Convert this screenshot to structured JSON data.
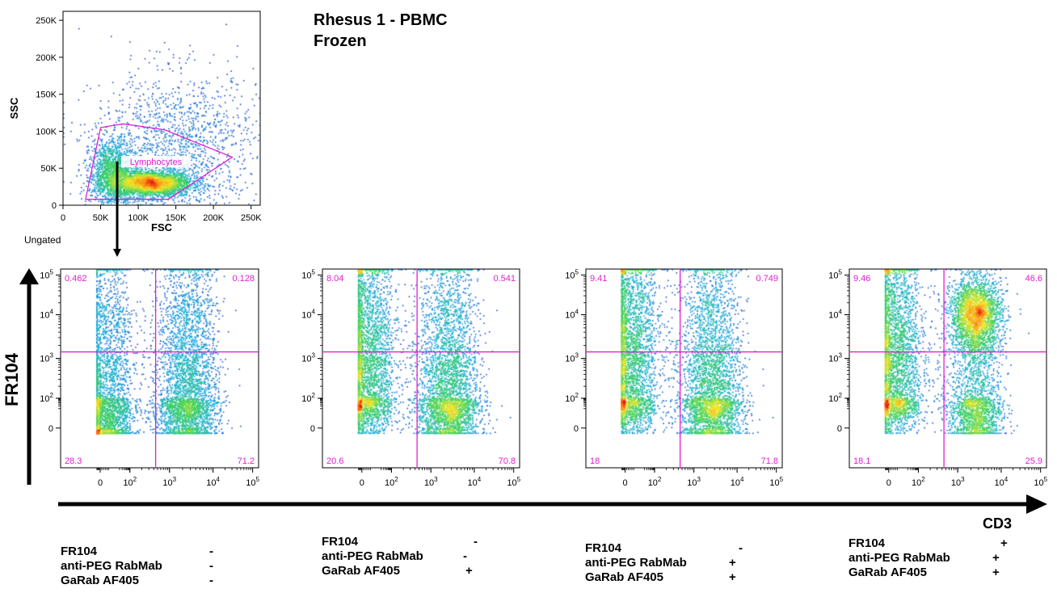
{
  "title_lines": [
    "Rhesus 1 - PBMC",
    "Frozen"
  ],
  "colors": {
    "gate": "#e020d0",
    "axis": "#000000"
  },
  "big_axes": {
    "y_label": "FR104",
    "x_label": "CD3"
  },
  "chart_data": [
    {
      "type": "scatter",
      "subtitle": "Ungated",
      "xlabel": "FSC",
      "ylabel": "SSC",
      "xlim": [
        0,
        262144
      ],
      "ylim": [
        0,
        262144
      ],
      "x_ticks": [
        "0",
        "50K",
        "100K",
        "150K",
        "200K",
        "250K"
      ],
      "y_ticks": [
        "0",
        "50K",
        "100K",
        "150K",
        "200K",
        "250K"
      ],
      "gate": {
        "name": "Lymphocytes",
        "polygon": [
          [
            30000,
            8000
          ],
          [
            50000,
            105000
          ],
          [
            80000,
            110000
          ],
          [
            135000,
            102000
          ],
          [
            225000,
            65000
          ],
          [
            140000,
            8000
          ]
        ]
      },
      "populations": [
        {
          "x": 115000,
          "y": 30000,
          "sx": 28000,
          "sy": 9000,
          "n": 3000
        },
        {
          "x": 65000,
          "y": 45000,
          "sx": 15000,
          "sy": 22000,
          "n": 1400
        },
        {
          "x": 150000,
          "y": 80000,
          "sx": 55000,
          "sy": 50000,
          "n": 1500
        }
      ]
    },
    {
      "type": "scatter",
      "xlim": [
        -6,
        5.3
      ],
      "ylim": [
        -6,
        5.3
      ],
      "x_ticks": [
        {
          "v": 0,
          "t": "0"
        },
        {
          "v": 2,
          "t": "10",
          "e": "2"
        },
        {
          "v": 3,
          "t": "10",
          "e": "3"
        },
        {
          "v": 4,
          "t": "10",
          "e": "4"
        },
        {
          "v": 5,
          "t": "10",
          "e": "5"
        }
      ],
      "y_ticks": [
        {
          "v": 0,
          "t": "0"
        },
        {
          "v": 2,
          "t": "10",
          "e": "2"
        },
        {
          "v": 3,
          "t": "10",
          "e": "3"
        },
        {
          "v": 4,
          "t": "10",
          "e": "4"
        },
        {
          "v": 5,
          "t": "10",
          "e": "5"
        }
      ],
      "quadrant": {
        "x": 2.65,
        "y": 3.15
      },
      "quadrant_values": {
        "upper_left": "0.462",
        "upper_right": "0.128",
        "lower_left": "28.3",
        "lower_right": "71.2"
      },
      "populations": [
        {
          "x": 0.4,
          "y": 1.8,
          "sx": 1.0,
          "sy": 1.8,
          "n": 2800
        },
        {
          "x": 3.4,
          "y": 2.2,
          "sx": 0.35,
          "sy": 1.6,
          "n": 3500
        },
        {
          "x": 1.5,
          "y": 3.7,
          "sx": 0.7,
          "sy": 0.5,
          "n": 120
        }
      ]
    },
    {
      "type": "scatter",
      "xlim": [
        -6,
        5.3
      ],
      "ylim": [
        -6,
        5.3
      ],
      "x_ticks": [
        {
          "v": 0,
          "t": "0"
        },
        {
          "v": 2,
          "t": "10",
          "e": "2"
        },
        {
          "v": 3,
          "t": "10",
          "e": "3"
        },
        {
          "v": 4,
          "t": "10",
          "e": "4"
        },
        {
          "v": 5,
          "t": "10",
          "e": "5"
        }
      ],
      "y_ticks": [
        {
          "v": 0,
          "t": "0"
        },
        {
          "v": 2,
          "t": "10",
          "e": "2"
        },
        {
          "v": 3,
          "t": "10",
          "e": "3"
        },
        {
          "v": 4,
          "t": "10",
          "e": "4"
        },
        {
          "v": 5,
          "t": "10",
          "e": "5"
        }
      ],
      "quadrant": {
        "x": 2.65,
        "y": 3.15
      },
      "quadrant_values": {
        "upper_left": "8.04",
        "upper_right": "0.541",
        "lower_left": "20.6",
        "lower_right": "70.8"
      },
      "populations": [
        {
          "x": 0.4,
          "y": 2.8,
          "sx": 1.0,
          "sy": 1.4,
          "n": 3300
        },
        {
          "x": 3.4,
          "y": 2.2,
          "sx": 0.35,
          "sy": 1.6,
          "n": 3500
        }
      ]
    },
    {
      "type": "scatter",
      "xlim": [
        -6,
        5.3
      ],
      "ylim": [
        -6,
        5.3
      ],
      "x_ticks": [
        {
          "v": 0,
          "t": "0"
        },
        {
          "v": 2,
          "t": "10",
          "e": "2"
        },
        {
          "v": 3,
          "t": "10",
          "e": "3"
        },
        {
          "v": 4,
          "t": "10",
          "e": "4"
        },
        {
          "v": 5,
          "t": "10",
          "e": "5"
        }
      ],
      "y_ticks": [
        {
          "v": 0,
          "t": "0"
        },
        {
          "v": 2,
          "t": "10",
          "e": "2"
        },
        {
          "v": 3,
          "t": "10",
          "e": "3"
        },
        {
          "v": 4,
          "t": "10",
          "e": "4"
        },
        {
          "v": 5,
          "t": "10",
          "e": "5"
        }
      ],
      "quadrant": {
        "x": 2.65,
        "y": 3.15
      },
      "quadrant_values": {
        "upper_left": "9.41",
        "upper_right": "0.749",
        "lower_left": "18",
        "lower_right": "71.8"
      },
      "populations": [
        {
          "x": 0.4,
          "y": 2.9,
          "sx": 1.0,
          "sy": 1.4,
          "n": 3300
        },
        {
          "x": 3.4,
          "y": 2.2,
          "sx": 0.35,
          "sy": 1.6,
          "n": 3500
        }
      ]
    },
    {
      "type": "scatter",
      "xlim": [
        -6,
        5.3
      ],
      "ylim": [
        -6,
        5.3
      ],
      "x_ticks": [
        {
          "v": 0,
          "t": "0"
        },
        {
          "v": 2,
          "t": "10",
          "e": "2"
        },
        {
          "v": 3,
          "t": "10",
          "e": "3"
        },
        {
          "v": 4,
          "t": "10",
          "e": "4"
        },
        {
          "v": 5,
          "t": "10",
          "e": "5"
        }
      ],
      "y_ticks": [
        {
          "v": 0,
          "t": "0"
        },
        {
          "v": 2,
          "t": "10",
          "e": "2"
        },
        {
          "v": 3,
          "t": "10",
          "e": "3"
        },
        {
          "v": 4,
          "t": "10",
          "e": "4"
        },
        {
          "v": 5,
          "t": "10",
          "e": "5"
        }
      ],
      "quadrant": {
        "x": 2.65,
        "y": 3.15
      },
      "quadrant_values": {
        "upper_left": "9.46",
        "upper_right": "46.6",
        "lower_left": "18.1",
        "lower_right": "25.9"
      },
      "populations": [
        {
          "x": 0.4,
          "y": 2.9,
          "sx": 1.0,
          "sy": 1.4,
          "n": 3300
        },
        {
          "x": 3.4,
          "y": 4.0,
          "sx": 0.3,
          "sy": 0.45,
          "n": 2600
        },
        {
          "x": 3.4,
          "y": 1.6,
          "sx": 0.3,
          "sy": 1.4,
          "n": 1900
        }
      ]
    }
  ],
  "conditions": [
    [
      {
        "label": "FR104",
        "sign": "-"
      },
      {
        "label": "anti-PEG RabMab",
        "sign": "-"
      },
      {
        "label": "GaRab AF405",
        "sign": "-"
      }
    ],
    [
      {
        "label": "FR104",
        "sign": "-"
      },
      {
        "label": "anti-PEG RabMab",
        "sign": "-"
      },
      {
        "label": "GaRab AF405",
        "sign": "+"
      }
    ],
    [
      {
        "label": "FR104",
        "sign": "-"
      },
      {
        "label": "anti-PEG RabMab",
        "sign": "+"
      },
      {
        "label": "GaRab AF405",
        "sign": "+"
      }
    ],
    [
      {
        "label": "FR104",
        "sign": "+"
      },
      {
        "label": "anti-PEG RabMab",
        "sign": "+"
      },
      {
        "label": "GaRab AF405",
        "sign": "+"
      }
    ]
  ]
}
